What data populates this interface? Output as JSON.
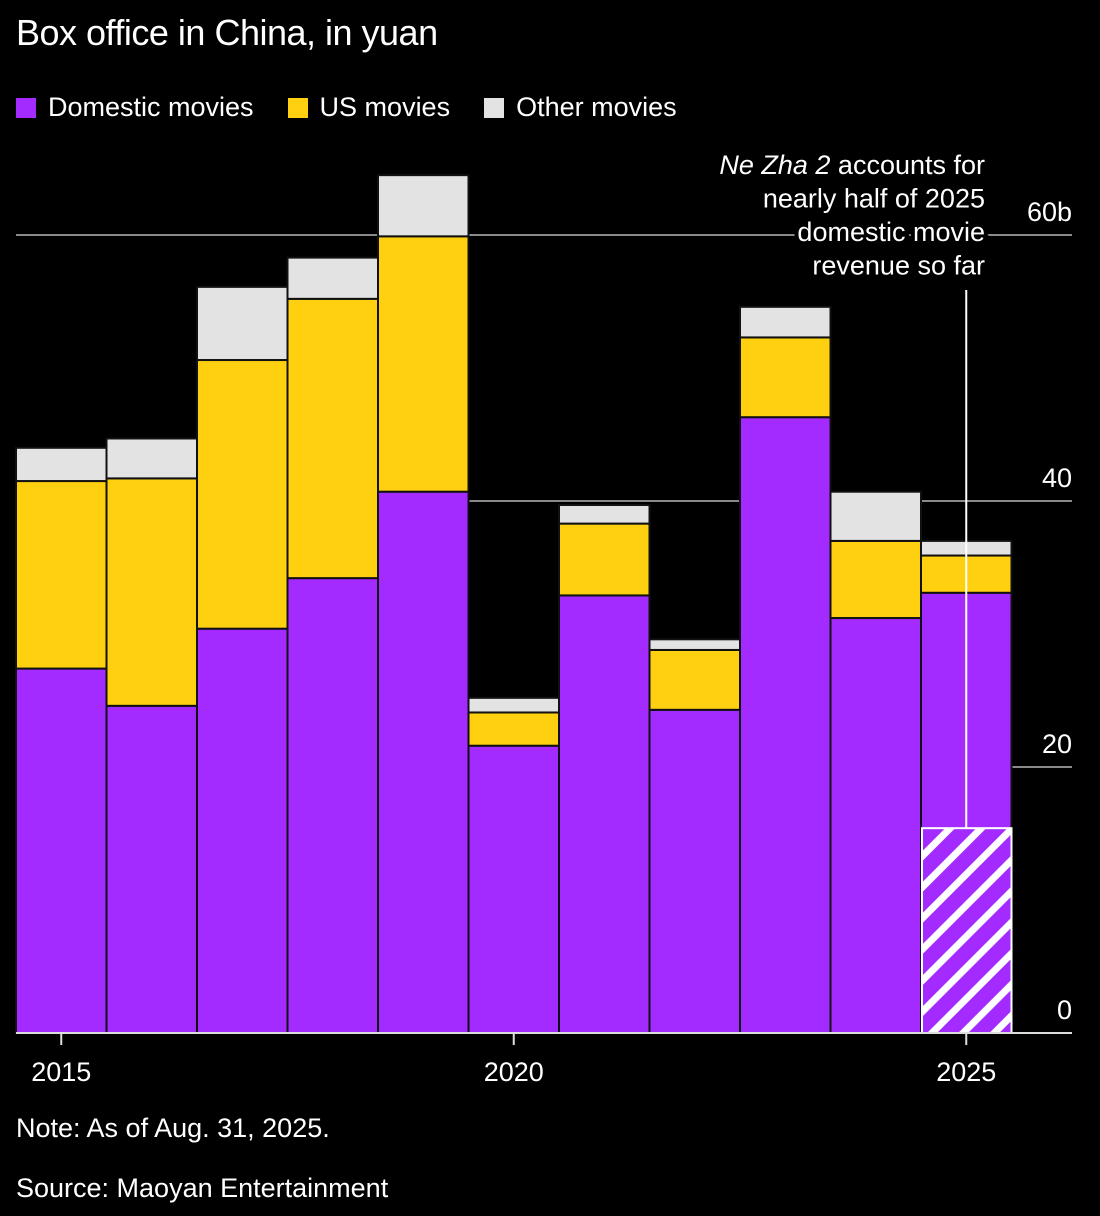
{
  "chart_data": {
    "type": "bar",
    "stacked": true,
    "title": "Box office in China, in yuan",
    "xlabel": "",
    "ylabel": "",
    "ylim": [
      0,
      65
    ],
    "y_ticks": [
      {
        "value": 0,
        "label": "0"
      },
      {
        "value": 20,
        "label": "20"
      },
      {
        "value": 40,
        "label": "40"
      },
      {
        "value": 60,
        "label": "60b"
      }
    ],
    "x_ticks": [
      {
        "year": 2015,
        "label": "2015"
      },
      {
        "year": 2020,
        "label": "2020"
      },
      {
        "year": 2025,
        "label": "2025"
      }
    ],
    "categories": [
      2015,
      2016,
      2017,
      2018,
      2019,
      2020,
      2021,
      2022,
      2023,
      2024,
      2025
    ],
    "series": [
      {
        "name": "Domestic movies",
        "color": "#a42bff",
        "values": [
          27.4,
          24.6,
          30.4,
          34.2,
          40.7,
          21.6,
          32.9,
          24.3,
          46.3,
          31.2,
          33.1
        ]
      },
      {
        "name": "US movies",
        "color": "#ffd010",
        "values": [
          14.1,
          17.1,
          20.2,
          21.0,
          19.2,
          2.5,
          5.4,
          4.5,
          6.0,
          5.8,
          2.8
        ]
      },
      {
        "name": "Other movies",
        "color": "#e3e3e3",
        "values": [
          2.5,
          3.0,
          5.5,
          3.1,
          4.6,
          1.1,
          1.4,
          0.8,
          2.3,
          3.7,
          1.1
        ]
      }
    ],
    "highlight": {
      "year": 2025,
      "label": "Ne Zha 2",
      "value": 15.4,
      "pattern": "hatched"
    },
    "annotation": {
      "italic_part": "Ne Zha 2",
      "lines": [
        " accounts for",
        "nearly half of 2025",
        "domestic movie",
        "revenue so far"
      ]
    },
    "legend": [
      "Domestic movies",
      "US movies",
      "Other movies"
    ],
    "legend_position": "top-left",
    "grid": true,
    "axis_side": "right"
  },
  "note": "Note: As of Aug. 31, 2025.",
  "source": "Source: Maoyan Entertainment"
}
